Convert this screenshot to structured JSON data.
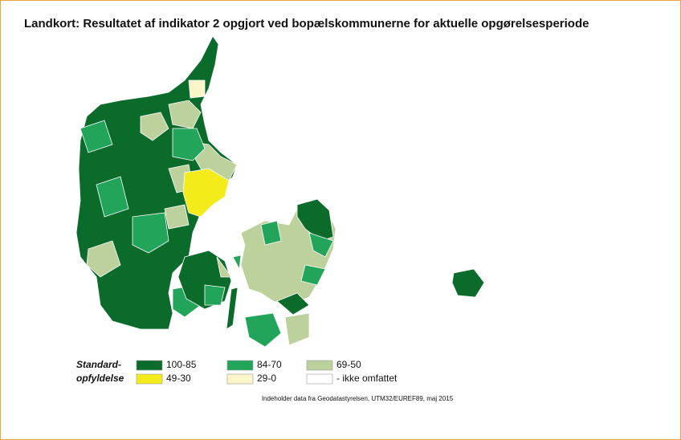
{
  "title": "Landkort: Resultatet af indikator 2 opgjort ved bopælskommunerne for aktuelle opgørelsesperiode",
  "legend": {
    "title": [
      "Standard-",
      "opfyldelse"
    ],
    "items": [
      {
        "label": "100-85",
        "color": "#0b6b2b"
      },
      {
        "label": "84-70",
        "color": "#22a55b"
      },
      {
        "label": "69-50",
        "color": "#bcd19c"
      },
      {
        "label": "49-30",
        "color": "#f4ec1a"
      },
      {
        "label": "29-0",
        "color": "#fbf6c9"
      },
      {
        "label": "- ikke omfattet",
        "color": "#ffffff"
      }
    ]
  },
  "source": "Indeholder data fra Geodatastyrelsen, UTM32/EUREF89, maj 2015"
}
